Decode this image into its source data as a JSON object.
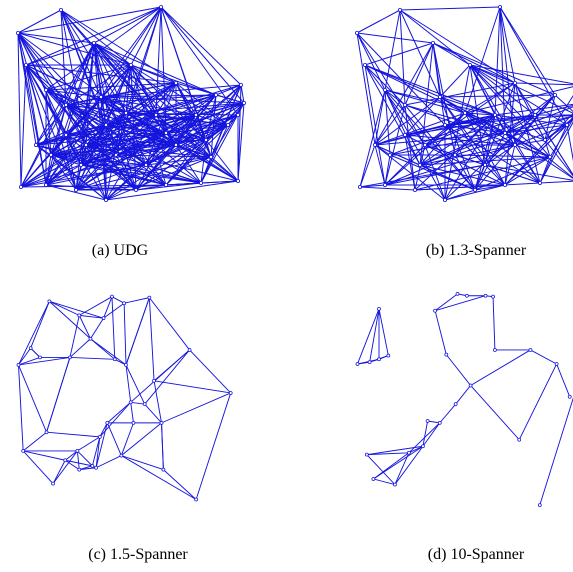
{
  "edge_color": "#1515dd",
  "node_color": "#1515dd",
  "panels": [
    {
      "id": "udg",
      "caption": "(a) UDG",
      "density": 0.6,
      "seed": 11
    },
    {
      "id": "spanner13",
      "caption": "(b) 1.3-Spanner",
      "density": 0.42,
      "seed": 23
    },
    {
      "id": "spanner15",
      "caption": "(c) 1.5-Spanner",
      "density": 0.18,
      "seed": 37
    },
    {
      "id": "spanner10",
      "caption": "(d) 10-Spanner",
      "density": 0.0,
      "seed": 51
    }
  ]
}
